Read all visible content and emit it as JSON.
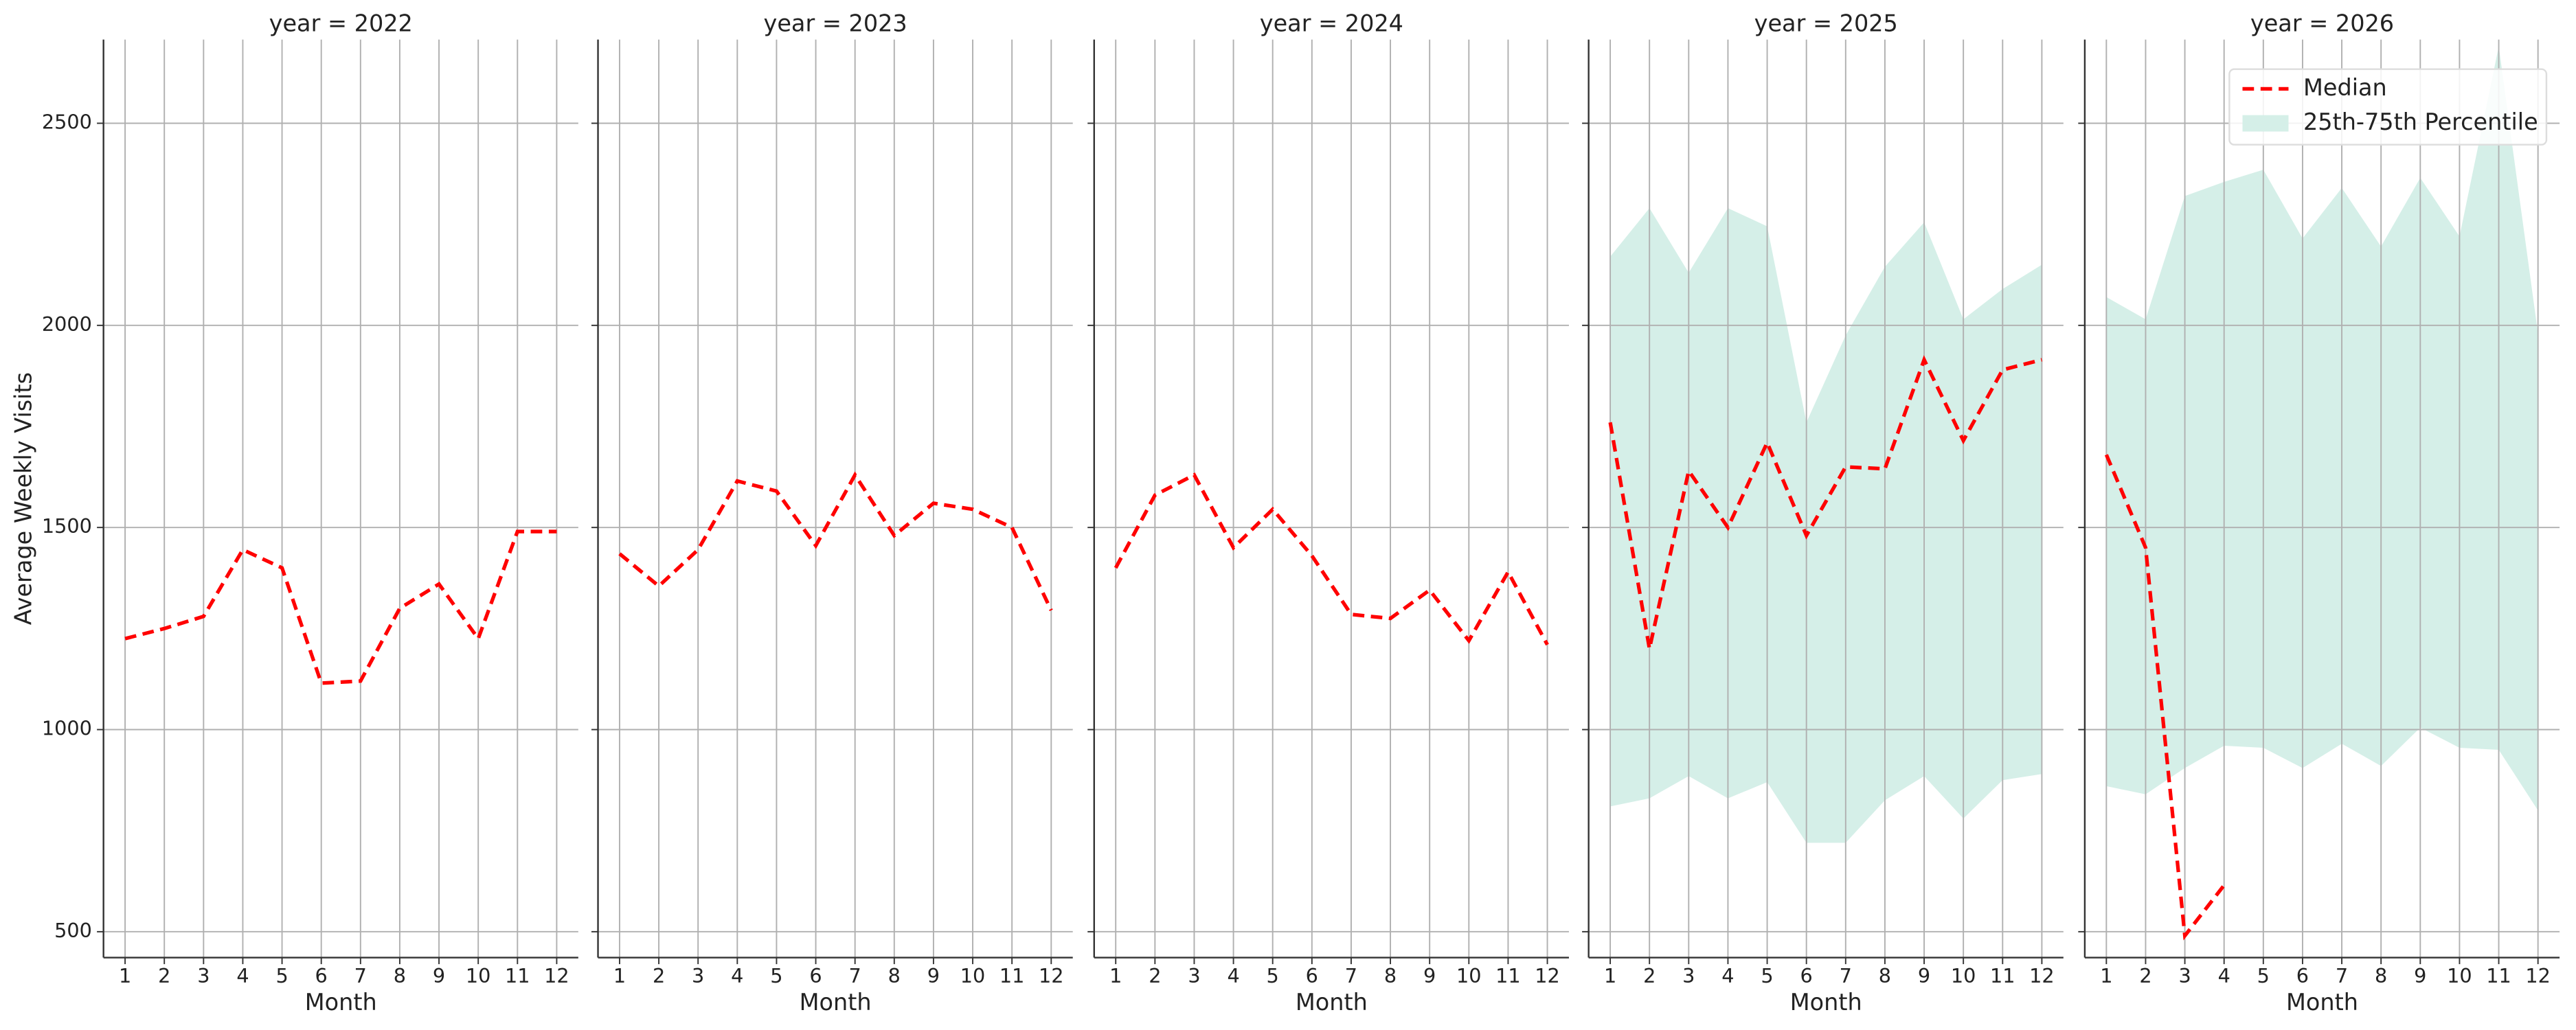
{
  "chart_data": [
    {
      "type": "line",
      "title": "year = 2022",
      "xlabel": "Month",
      "ylabel": "Average Weekly Visits",
      "x": [
        1,
        2,
        3,
        4,
        5,
        6,
        7,
        8,
        9,
        10,
        11,
        12
      ],
      "series": [
        {
          "color": "#ff0000",
          "values": [
            1225,
            1250,
            1280,
            1445,
            1400,
            1115,
            1120,
            1300,
            1360,
            1225,
            1490,
            1490
          ]
        }
      ],
      "xlim": [
        0.45,
        12.55
      ],
      "ylim": [
        436,
        2707
      ],
      "xticks": [
        1,
        2,
        3,
        4,
        5,
        6,
        7,
        8,
        9,
        10,
        11,
        12
      ],
      "yticks": [
        500,
        1000,
        1500,
        2000,
        2500
      ],
      "grid": true
    },
    {
      "type": "line",
      "title": "year = 2023",
      "xlabel": "Month",
      "x": [
        1,
        2,
        3,
        4,
        5,
        6,
        7,
        8,
        9,
        10,
        11,
        12
      ],
      "series": [
        {
          "color": "#ff0000",
          "values": [
            1435,
            1355,
            1445,
            1615,
            1590,
            1455,
            1630,
            1480,
            1560,
            1545,
            1500,
            1295
          ]
        }
      ],
      "xlim": [
        0.45,
        12.55
      ],
      "ylim": [
        436,
        2707
      ],
      "xticks": [
        1,
        2,
        3,
        4,
        5,
        6,
        7,
        8,
        9,
        10,
        11,
        12
      ],
      "yticks": [
        500,
        1000,
        1500,
        2000,
        2500
      ],
      "grid": true
    },
    {
      "type": "line",
      "title": "year = 2024",
      "xlabel": "Month",
      "x": [
        1,
        2,
        3,
        4,
        5,
        6,
        7,
        8,
        9,
        10,
        11,
        12
      ],
      "series": [
        {
          "color": "#ff0000",
          "values": [
            1400,
            1580,
            1630,
            1450,
            1545,
            1430,
            1285,
            1275,
            1345,
            1220,
            1390,
            1210
          ]
        }
      ],
      "xlim": [
        0.45,
        12.55
      ],
      "ylim": [
        436,
        2707
      ],
      "xticks": [
        1,
        2,
        3,
        4,
        5,
        6,
        7,
        8,
        9,
        10,
        11,
        12
      ],
      "yticks": [
        500,
        1000,
        1500,
        2000,
        2500
      ],
      "grid": true
    },
    {
      "type": "line",
      "title": "year = 2025",
      "xlabel": "Month",
      "x": [
        1,
        2,
        3,
        4,
        5,
        6,
        7,
        8,
        9,
        10,
        11,
        12
      ],
      "series": [
        {
          "color": "#ff0000",
          "values": [
            1760,
            1200,
            1640,
            1500,
            1710,
            1480,
            1650,
            1645,
            1915,
            1715,
            1890,
            1915
          ]
        }
      ],
      "band": {
        "color": "#d5efe8",
        "lower": [
          810,
          830,
          885,
          830,
          870,
          720,
          720,
          825,
          885,
          780,
          875,
          890
        ],
        "upper": [
          2170,
          2290,
          2130,
          2290,
          2245,
          1760,
          1975,
          2145,
          2255,
          2015,
          2090,
          2150
        ]
      },
      "xlim": [
        0.45,
        12.55
      ],
      "ylim": [
        436,
        2707
      ],
      "xticks": [
        1,
        2,
        3,
        4,
        5,
        6,
        7,
        8,
        9,
        10,
        11,
        12
      ],
      "yticks": [
        500,
        1000,
        1500,
        2000,
        2500
      ],
      "grid": true
    },
    {
      "type": "line",
      "title": "year = 2026",
      "xlabel": "Month",
      "x": [
        1,
        2,
        3,
        4,
        5,
        6,
        7,
        8,
        9,
        10,
        11,
        12
      ],
      "series": [
        {
          "name": "Median",
          "color": "#ff0000",
          "values": [
            1680,
            1450,
            490,
            615,
            null,
            null,
            null,
            null,
            null,
            null,
            null,
            null
          ]
        }
      ],
      "band": {
        "name": "25th-75th Percentile",
        "color": "#d5efe8",
        "lower": [
          860,
          840,
          905,
          960,
          955,
          905,
          965,
          910,
          1005,
          955,
          950,
          800
        ],
        "upper": [
          2070,
          2015,
          2320,
          2355,
          2385,
          2215,
          2340,
          2195,
          2365,
          2220,
          2690,
          1980
        ]
      },
      "legend": "upper right",
      "xlim": [
        0.45,
        12.55
      ],
      "ylim": [
        436,
        2707
      ],
      "xticks": [
        1,
        2,
        3,
        4,
        5,
        6,
        7,
        8,
        9,
        10,
        11,
        12
      ],
      "yticks": [
        500,
        1000,
        1500,
        2000,
        2500
      ],
      "grid": true
    }
  ]
}
